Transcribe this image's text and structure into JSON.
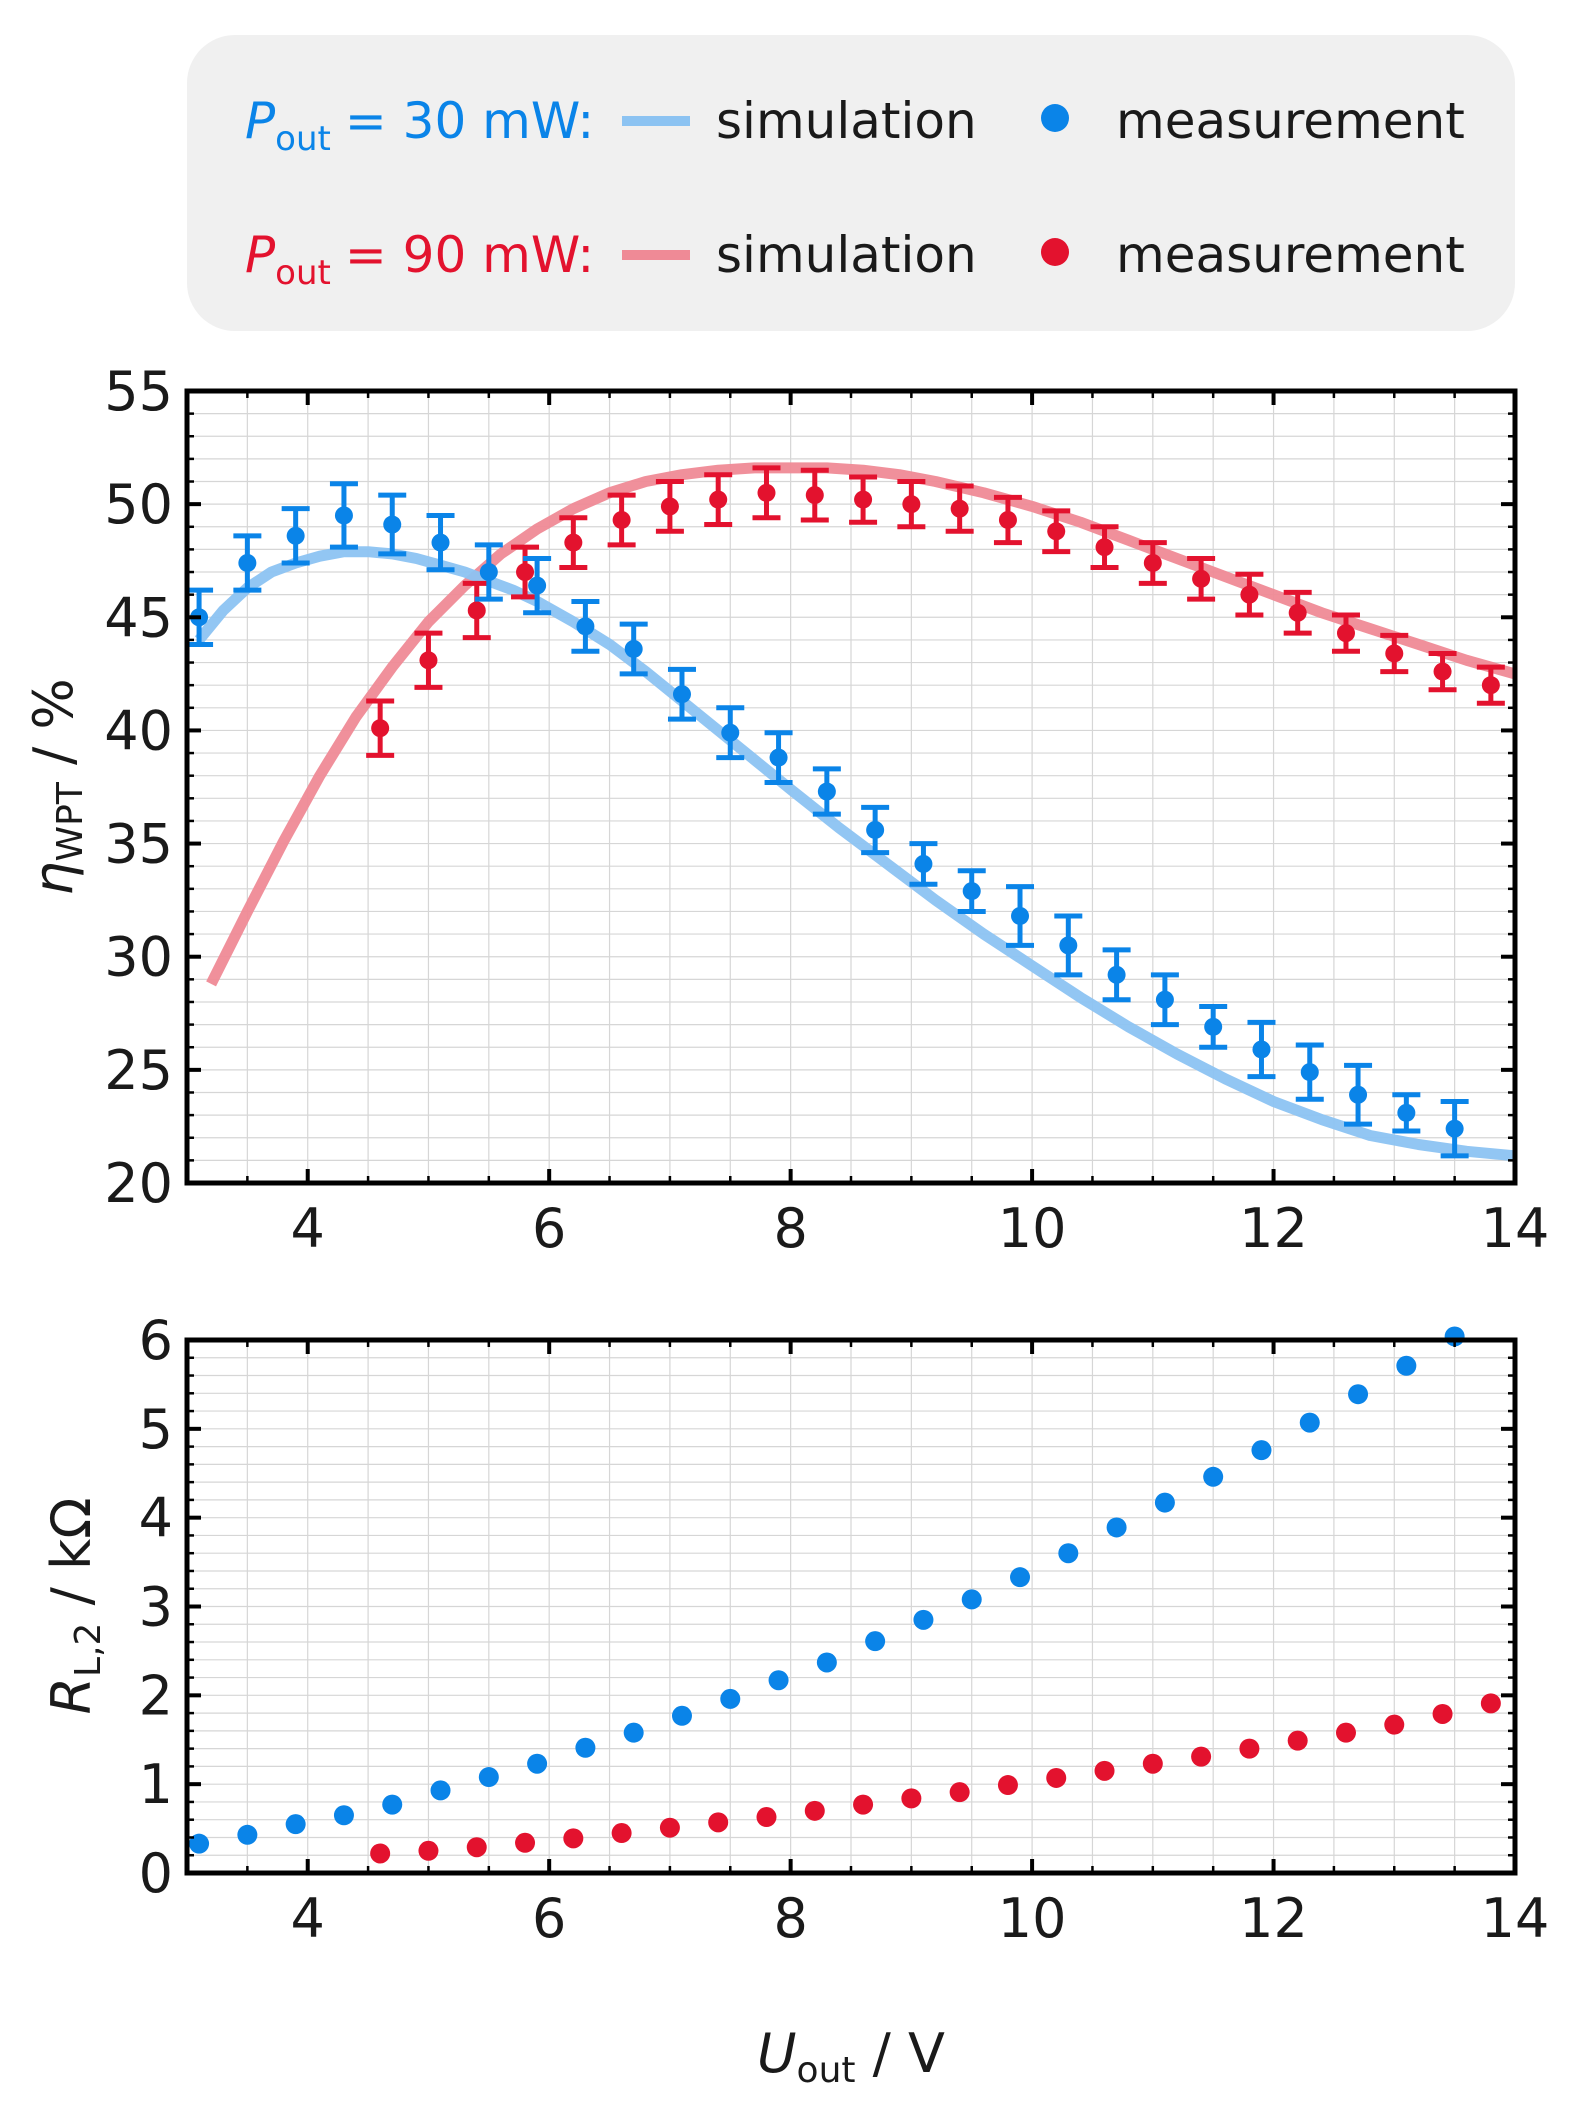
{
  "colors": {
    "blue": "#0a84e8",
    "blue_light": "#8cc3f2",
    "red": "#e3122e",
    "red_light": "#ef8a96"
  },
  "legend": {
    "rows": [
      {
        "p_symbol": "P",
        "p_subscript": "out",
        "power": "= 30 mW:",
        "sim_label": "simulation",
        "meas_label": "measurement",
        "color_key": "blue"
      },
      {
        "p_symbol": "P",
        "p_subscript": "out",
        "power": "= 90 mW:",
        "sim_label": "simulation",
        "meas_label": "measurement",
        "color_key": "red"
      }
    ]
  },
  "chart_data": [
    {
      "type": "line",
      "id": "efficiency",
      "ylabel_symbol": "η",
      "ylabel_subscript": "WPT",
      "ylabel_unit": " / %",
      "xlim": [
        3,
        14
      ],
      "ylim": [
        20,
        55
      ],
      "xticks": [
        4,
        6,
        8,
        10,
        12,
        14
      ],
      "yticks": [
        20,
        25,
        30,
        35,
        40,
        45,
        50,
        55
      ],
      "series": [
        {
          "name": "P_out = 30 mW simulation",
          "kind": "line",
          "color_key": "blue_light",
          "x": [
            3.1,
            3.3,
            3.5,
            3.7,
            3.9,
            4.1,
            4.3,
            4.5,
            4.7,
            4.9,
            5.1,
            5.3,
            5.5,
            5.7,
            5.9,
            6.2,
            6.5,
            6.8,
            7.1,
            7.4,
            7.7,
            8.0,
            8.4,
            8.8,
            9.2,
            9.6,
            10.0,
            10.4,
            10.8,
            11.2,
            11.6,
            12.0,
            12.4,
            12.8,
            13.2,
            13.6,
            14.0
          ],
          "y": [
            44.0,
            45.3,
            46.3,
            47.0,
            47.4,
            47.7,
            47.9,
            47.9,
            47.8,
            47.6,
            47.3,
            47.0,
            46.6,
            46.2,
            45.7,
            44.8,
            43.8,
            42.6,
            41.3,
            40.0,
            38.7,
            37.4,
            35.7,
            34.1,
            32.5,
            31.0,
            29.6,
            28.2,
            26.9,
            25.7,
            24.6,
            23.6,
            22.8,
            22.1,
            21.7,
            21.4,
            21.2
          ]
        },
        {
          "name": "P_out = 30 mW measurement",
          "kind": "errorbar",
          "color_key": "blue",
          "x": [
            3.1,
            3.5,
            3.9,
            4.3,
            4.7,
            5.1,
            5.5,
            5.9,
            6.3,
            6.7,
            7.1,
            7.5,
            7.9,
            8.3,
            8.7,
            9.1,
            9.5,
            9.9,
            10.3,
            10.7,
            11.1,
            11.5,
            11.9,
            12.3,
            12.7,
            13.1,
            13.5
          ],
          "y": [
            45.0,
            47.4,
            48.6,
            49.5,
            49.1,
            48.3,
            47.0,
            46.4,
            44.6,
            43.6,
            41.6,
            39.9,
            38.8,
            37.3,
            35.6,
            34.1,
            32.9,
            31.8,
            30.5,
            29.2,
            28.1,
            26.9,
            25.9,
            24.9,
            23.9,
            23.1,
            22.4
          ],
          "err": [
            1.2,
            1.2,
            1.2,
            1.4,
            1.3,
            1.2,
            1.2,
            1.2,
            1.1,
            1.1,
            1.1,
            1.1,
            1.1,
            1.0,
            1.0,
            0.9,
            0.9,
            1.3,
            1.3,
            1.1,
            1.1,
            0.9,
            1.2,
            1.2,
            1.3,
            0.8,
            1.2
          ]
        },
        {
          "name": "P_out = 90 mW simulation",
          "kind": "line",
          "color_key": "red_light",
          "x": [
            3.2,
            3.5,
            3.8,
            4.1,
            4.4,
            4.7,
            5.0,
            5.3,
            5.6,
            5.9,
            6.2,
            6.5,
            6.8,
            7.1,
            7.4,
            7.7,
            8.0,
            8.3,
            8.6,
            8.9,
            9.2,
            9.6,
            10.0,
            10.4,
            10.8,
            11.2,
            11.6,
            12.0,
            12.4,
            12.8,
            13.2,
            13.6,
            14.0
          ],
          "y": [
            28.8,
            32.0,
            35.1,
            38.0,
            40.6,
            42.8,
            44.8,
            46.4,
            47.8,
            48.9,
            49.8,
            50.5,
            51.0,
            51.3,
            51.5,
            51.6,
            51.6,
            51.6,
            51.5,
            51.3,
            51.0,
            50.5,
            49.9,
            49.2,
            48.4,
            47.6,
            46.8,
            46.0,
            45.2,
            44.5,
            43.8,
            43.1,
            42.5
          ]
        },
        {
          "name": "P_out = 90 mW measurement",
          "kind": "errorbar",
          "color_key": "red",
          "x": [
            4.6,
            5.0,
            5.4,
            5.8,
            6.2,
            6.6,
            7.0,
            7.4,
            7.8,
            8.2,
            8.6,
            9.0,
            9.4,
            9.8,
            10.2,
            10.6,
            11.0,
            11.4,
            11.8,
            12.2,
            12.6,
            13.0,
            13.4,
            13.8
          ],
          "y": [
            40.1,
            43.1,
            45.3,
            47.0,
            48.3,
            49.3,
            49.9,
            50.2,
            50.5,
            50.4,
            50.2,
            50.0,
            49.8,
            49.3,
            48.8,
            48.1,
            47.4,
            46.7,
            46.0,
            45.2,
            44.3,
            43.4,
            42.6,
            42.0
          ],
          "err": [
            1.2,
            1.2,
            1.2,
            1.1,
            1.1,
            1.1,
            1.1,
            1.1,
            1.1,
            1.1,
            1.0,
            1.0,
            1.0,
            1.0,
            0.9,
            0.9,
            0.9,
            0.9,
            0.9,
            0.9,
            0.8,
            0.8,
            0.8,
            0.8
          ]
        }
      ]
    },
    {
      "type": "scatter",
      "id": "load_resistance",
      "ylabel_symbol": "R",
      "ylabel_subscript": "L,2",
      "ylabel_unit": " / kΩ",
      "xlabel_symbol": "U",
      "xlabel_subscript": "out",
      "xlabel_unit": " / V",
      "xlim": [
        3,
        14
      ],
      "ylim": [
        0,
        6
      ],
      "xticks": [
        4,
        6,
        8,
        10,
        12,
        14
      ],
      "yticks": [
        0,
        1,
        2,
        3,
        4,
        5,
        6
      ],
      "series": [
        {
          "name": "P_out = 30 mW measurement",
          "color_key": "blue",
          "x": [
            3.1,
            3.5,
            3.9,
            4.3,
            4.7,
            5.1,
            5.5,
            5.9,
            6.3,
            6.7,
            7.1,
            7.5,
            7.9,
            8.3,
            8.7,
            9.1,
            9.5,
            9.9,
            10.3,
            10.7,
            11.1,
            11.5,
            11.9,
            12.3,
            12.7,
            13.1,
            13.5
          ],
          "y": [
            0.33,
            0.43,
            0.55,
            0.65,
            0.77,
            0.93,
            1.08,
            1.23,
            1.41,
            1.58,
            1.77,
            1.96,
            2.17,
            2.37,
            2.61,
            2.85,
            3.08,
            3.33,
            3.6,
            3.89,
            4.17,
            4.46,
            4.76,
            5.07,
            5.39,
            5.71,
            6.04
          ]
        },
        {
          "name": "P_out = 90 mW measurement",
          "color_key": "red",
          "x": [
            4.6,
            5.0,
            5.4,
            5.8,
            6.2,
            6.6,
            7.0,
            7.4,
            7.8,
            8.2,
            8.6,
            9.0,
            9.4,
            9.8,
            10.2,
            10.6,
            11.0,
            11.4,
            11.8,
            12.2,
            12.6,
            13.0,
            13.4,
            13.8
          ],
          "y": [
            0.22,
            0.25,
            0.29,
            0.34,
            0.39,
            0.45,
            0.51,
            0.57,
            0.63,
            0.7,
            0.77,
            0.84,
            0.91,
            0.99,
            1.07,
            1.15,
            1.23,
            1.31,
            1.4,
            1.49,
            1.58,
            1.67,
            1.79,
            1.91
          ]
        }
      ]
    }
  ]
}
